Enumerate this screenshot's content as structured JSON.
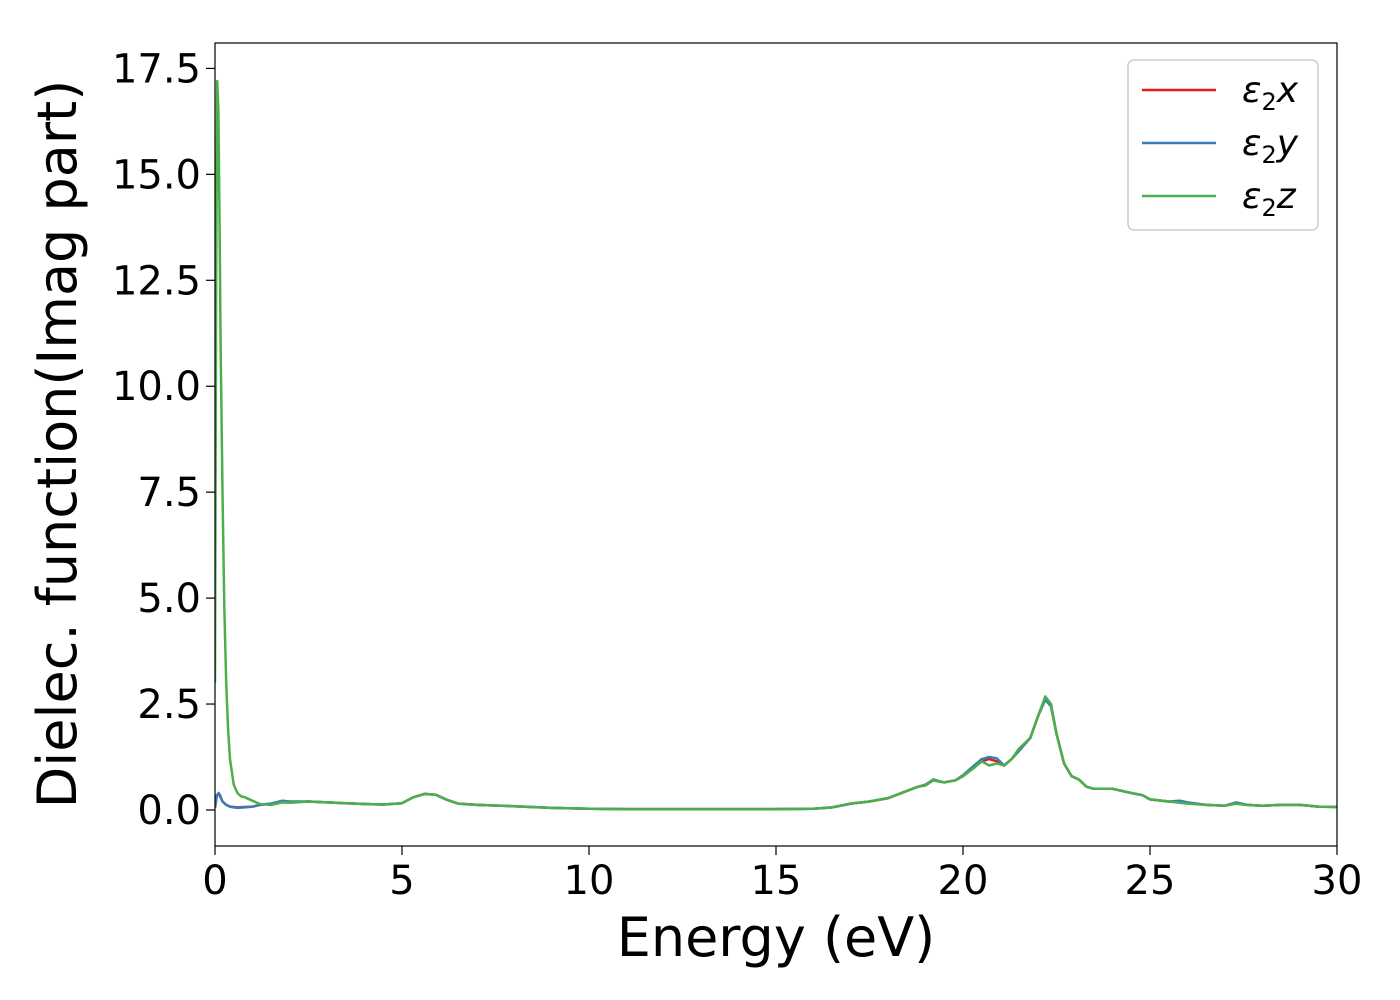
{
  "chart_data": {
    "type": "line",
    "title": "",
    "xlabel": "Energy (eV)",
    "ylabel": "Dielec. function(Imag part)",
    "xlim": [
      0,
      30
    ],
    "ylim": [
      -0.85,
      18.1
    ],
    "xticks": [
      0,
      5,
      10,
      15,
      20,
      25,
      30
    ],
    "xtick_labels": [
      "0",
      "5",
      "10",
      "15",
      "20",
      "25",
      "30"
    ],
    "yticks": [
      0,
      2.5,
      5,
      7.5,
      10,
      12.5,
      15,
      17.5
    ],
    "ytick_labels": [
      "0.0",
      "2.5",
      "5.0",
      "7.5",
      "10.0",
      "12.5",
      "15.0",
      "17.5"
    ],
    "grid": false,
    "legend_position": "top-right",
    "series": [
      {
        "name": "ε2x",
        "legend_main": "ε",
        "legend_sub": "2",
        "legend_axis": "x",
        "color": "#e41a1c",
        "x": [
          0,
          0.05,
          0.1,
          0.15,
          0.2,
          0.3,
          0.4,
          0.5,
          0.6,
          0.8,
          1.0,
          1.2,
          1.5,
          1.8,
          2.0,
          2.5,
          3.0,
          3.5,
          4.0,
          4.5,
          5.0,
          5.3,
          5.6,
          5.9,
          6.2,
          6.5,
          7.0,
          8.0,
          9.0,
          10.0,
          11.0,
          12.0,
          13.0,
          14.0,
          15.0,
          16.0,
          16.5,
          17.0,
          17.5,
          18.0,
          18.5,
          18.8,
          19.0,
          19.2,
          19.5,
          19.8,
          20.0,
          20.3,
          20.5,
          20.7,
          20.9,
          21.1,
          21.3,
          21.5,
          21.8,
          22.0,
          22.2,
          22.35,
          22.5,
          22.7,
          22.9,
          23.1,
          23.3,
          23.5,
          24.0,
          24.5,
          24.8,
          25.0,
          25.5,
          26.0,
          26.5,
          27.0,
          27.3,
          27.6,
          28.0,
          28.5,
          29.0,
          29.5,
          30.0
        ],
        "y": [
          0.05,
          0.35,
          0.38,
          0.3,
          0.2,
          0.12,
          0.08,
          0.07,
          0.06,
          0.07,
          0.08,
          0.12,
          0.15,
          0.2,
          0.18,
          0.2,
          0.18,
          0.16,
          0.14,
          0.13,
          0.16,
          0.3,
          0.38,
          0.36,
          0.24,
          0.15,
          0.12,
          0.09,
          0.05,
          0.03,
          0.02,
          0.02,
          0.02,
          0.02,
          0.02,
          0.03,
          0.06,
          0.15,
          0.2,
          0.28,
          0.45,
          0.55,
          0.58,
          0.7,
          0.65,
          0.7,
          0.8,
          1.0,
          1.15,
          1.2,
          1.15,
          1.05,
          1.2,
          1.4,
          1.7,
          2.2,
          2.65,
          2.5,
          1.8,
          1.1,
          0.8,
          0.72,
          0.55,
          0.5,
          0.5,
          0.4,
          0.35,
          0.25,
          0.2,
          0.17,
          0.12,
          0.1,
          0.15,
          0.12,
          0.1,
          0.12,
          0.12,
          0.08,
          0.07
        ]
      },
      {
        "name": "ε2y",
        "legend_main": "ε",
        "legend_sub": "2",
        "legend_axis": "y",
        "color": "#377eb8",
        "x": [
          0,
          0.05,
          0.1,
          0.15,
          0.2,
          0.3,
          0.4,
          0.5,
          0.6,
          0.8,
          1.0,
          1.2,
          1.5,
          1.8,
          2.0,
          2.5,
          3.0,
          3.5,
          4.0,
          4.5,
          5.0,
          5.3,
          5.6,
          5.9,
          6.2,
          6.5,
          7.0,
          8.0,
          9.0,
          10.0,
          11.0,
          12.0,
          13.0,
          14.0,
          15.0,
          16.0,
          16.5,
          17.0,
          17.5,
          18.0,
          18.5,
          18.8,
          19.0,
          19.2,
          19.5,
          19.8,
          20.0,
          20.3,
          20.5,
          20.7,
          20.9,
          21.1,
          21.3,
          21.5,
          21.8,
          22.0,
          22.2,
          22.35,
          22.5,
          22.7,
          22.9,
          23.1,
          23.3,
          23.5,
          24.0,
          24.5,
          24.8,
          25.0,
          25.5,
          25.8,
          26.0,
          26.5,
          27.0,
          27.3,
          27.6,
          28.0,
          28.5,
          29.0,
          29.5,
          30.0
        ],
        "y": [
          0.05,
          0.35,
          0.4,
          0.32,
          0.2,
          0.12,
          0.08,
          0.06,
          0.05,
          0.06,
          0.08,
          0.12,
          0.15,
          0.22,
          0.2,
          0.2,
          0.18,
          0.16,
          0.14,
          0.13,
          0.16,
          0.3,
          0.38,
          0.36,
          0.24,
          0.15,
          0.12,
          0.09,
          0.05,
          0.03,
          0.02,
          0.02,
          0.02,
          0.02,
          0.02,
          0.03,
          0.06,
          0.15,
          0.2,
          0.28,
          0.45,
          0.55,
          0.6,
          0.72,
          0.65,
          0.7,
          0.82,
          1.05,
          1.2,
          1.25,
          1.22,
          1.05,
          1.2,
          1.4,
          1.7,
          2.2,
          2.6,
          2.45,
          1.8,
          1.1,
          0.8,
          0.72,
          0.55,
          0.5,
          0.5,
          0.4,
          0.35,
          0.25,
          0.2,
          0.22,
          0.18,
          0.12,
          0.1,
          0.18,
          0.12,
          0.1,
          0.12,
          0.12,
          0.08,
          0.07
        ]
      },
      {
        "name": "ε2z",
        "legend_main": "ε",
        "legend_sub": "2",
        "legend_axis": "z",
        "color": "#4daf4a",
        "x": [
          0,
          0.03,
          0.06,
          0.09,
          0.12,
          0.15,
          0.2,
          0.25,
          0.3,
          0.35,
          0.4,
          0.5,
          0.6,
          0.7,
          0.8,
          1.0,
          1.2,
          1.5,
          1.8,
          2.0,
          2.5,
          3.0,
          3.5,
          4.0,
          4.5,
          5.0,
          5.3,
          5.6,
          5.9,
          6.2,
          6.5,
          7.0,
          8.0,
          9.0,
          10.0,
          11.0,
          12.0,
          13.0,
          14.0,
          15.0,
          16.0,
          16.5,
          17.0,
          17.5,
          18.0,
          18.5,
          18.8,
          19.0,
          19.2,
          19.5,
          19.8,
          20.0,
          20.3,
          20.5,
          20.7,
          20.9,
          21.1,
          21.3,
          21.5,
          21.8,
          22.0,
          22.2,
          22.35,
          22.5,
          22.7,
          22.9,
          23.1,
          23.3,
          23.5,
          24.0,
          24.5,
          24.8,
          25.0,
          25.5,
          26.0,
          26.5,
          27.0,
          27.3,
          27.6,
          28.0,
          28.5,
          29.0,
          29.5,
          30.0
        ],
        "y": [
          3.0,
          12.0,
          17.2,
          16.5,
          14.0,
          11.0,
          7.5,
          4.8,
          3.0,
          1.9,
          1.2,
          0.6,
          0.4,
          0.32,
          0.3,
          0.22,
          0.14,
          0.12,
          0.18,
          0.17,
          0.2,
          0.18,
          0.16,
          0.14,
          0.13,
          0.16,
          0.3,
          0.38,
          0.36,
          0.24,
          0.15,
          0.12,
          0.09,
          0.05,
          0.03,
          0.02,
          0.02,
          0.02,
          0.02,
          0.02,
          0.03,
          0.06,
          0.15,
          0.2,
          0.28,
          0.45,
          0.55,
          0.58,
          0.7,
          0.65,
          0.7,
          0.8,
          1.0,
          1.15,
          1.05,
          1.1,
          1.05,
          1.2,
          1.45,
          1.7,
          2.2,
          2.68,
          2.5,
          1.8,
          1.1,
          0.8,
          0.72,
          0.55,
          0.5,
          0.5,
          0.4,
          0.35,
          0.25,
          0.2,
          0.15,
          0.12,
          0.1,
          0.15,
          0.12,
          0.1,
          0.12,
          0.12,
          0.08,
          0.07
        ]
      }
    ]
  }
}
